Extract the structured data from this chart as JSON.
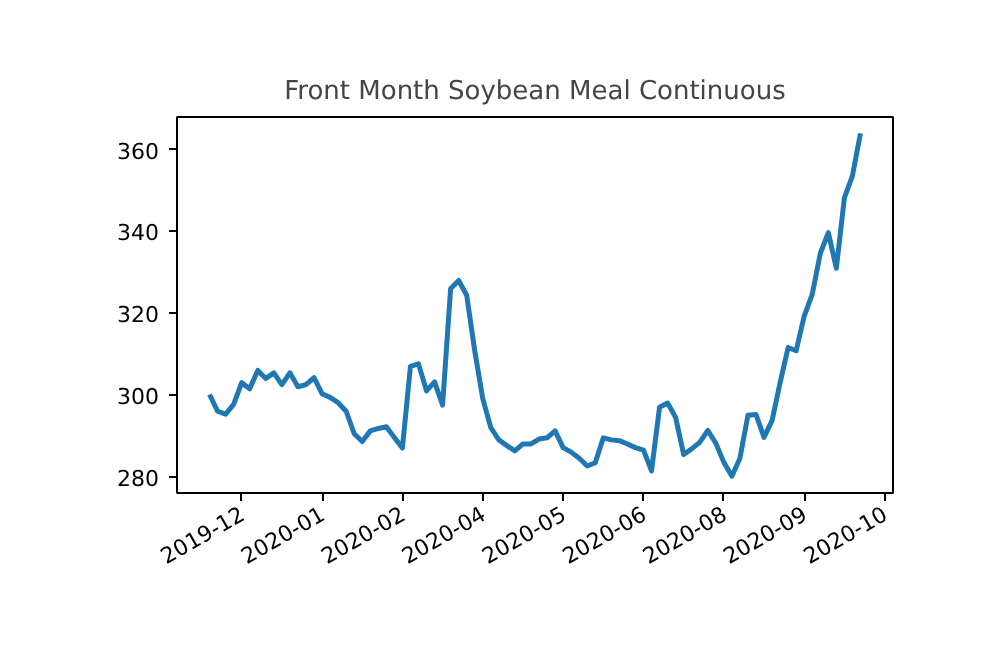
{
  "chart_data": {
    "type": "line",
    "title": "Front Month Soybean Meal Continuous",
    "categories": [
      null,
      null,
      null,
      null,
      "2019-12",
      null,
      null,
      null,
      null,
      null,
      null,
      null,
      null,
      null,
      "2020-01",
      null,
      null,
      null,
      null,
      null,
      null,
      null,
      null,
      null,
      "2020-02",
      null,
      null,
      null,
      null,
      null,
      null,
      null,
      null,
      null,
      "2020-04",
      null,
      null,
      null,
      null,
      null,
      null,
      null,
      null,
      null,
      "2020-05",
      null,
      null,
      null,
      null,
      null,
      null,
      null,
      null,
      null,
      "2020-06",
      null,
      null,
      null,
      null,
      null,
      null,
      null,
      null,
      null,
      "2020-08",
      null,
      null,
      null,
      null,
      null,
      null,
      null,
      null,
      null,
      "2020-09",
      null,
      null,
      null,
      null,
      null,
      null,
      null,
      null,
      null,
      "2020-10"
    ],
    "ylim": [
      276,
      368
    ],
    "yticks": [
      280,
      300,
      320,
      340,
      360
    ],
    "grid": false,
    "marker": "none",
    "line_style": "solid",
    "series": [
      {
        "color": "#1f77b4",
        "values": [
          300.1,
          296,
          295.3,
          297.7,
          303,
          301.5,
          306,
          304,
          305.4,
          302.5,
          305.4,
          302,
          302.5,
          304.2,
          300.3,
          299.4,
          298.1,
          296,
          290.5,
          288.6,
          291.2,
          291.8,
          292.2,
          289.6,
          287,
          307,
          307.6,
          301,
          303.2,
          297.5,
          326,
          328,
          324.4,
          310.8,
          299.1,
          292,
          289,
          287.6,
          286.3,
          288,
          288,
          289.2,
          289.5,
          291.2,
          287.1,
          286,
          284.5,
          282.6,
          283.4,
          289.5,
          289,
          288.8,
          288,
          287.1,
          286.5,
          281.4,
          297,
          298,
          294.5,
          285.4,
          286.8,
          288.4,
          291.3,
          288.2,
          283.5,
          280.1,
          284.5,
          295,
          295.2,
          289.6,
          293.7,
          303,
          311.6,
          310.8,
          319.3,
          324.6,
          334.6,
          339.7,
          331,
          348.2,
          353.6,
          364,
          null,
          null,
          null
        ]
      }
    ]
  }
}
